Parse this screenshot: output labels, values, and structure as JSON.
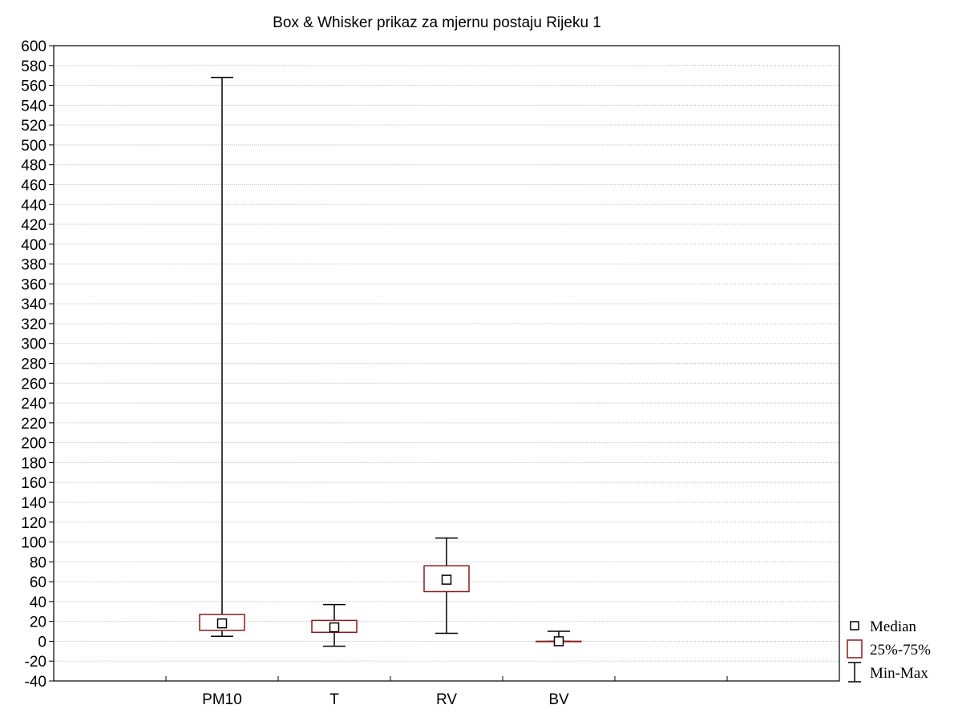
{
  "chart_data": {
    "type": "box",
    "title": "Box & Whisker prikaz za mjernu postaju Rijeku 1",
    "xlabel": "",
    "ylabel": "",
    "ylim": [
      -40,
      600
    ],
    "ytick_step": 20,
    "grid": true,
    "legend_position": "bottom-right",
    "slot_count": 7,
    "categories": [
      "PM10",
      "T",
      "RV",
      "BV"
    ],
    "category_slots": [
      2,
      3,
      4,
      5
    ],
    "series": [
      {
        "category": "PM10",
        "min": 5,
        "q1": 11,
        "median": 18,
        "q3": 27,
        "max": 568
      },
      {
        "category": "T",
        "min": -5,
        "q1": 9,
        "median": 14,
        "q3": 21,
        "max": 37
      },
      {
        "category": "RV",
        "min": 8,
        "q1": 50,
        "median": 62,
        "q3": 76,
        "max": 104
      },
      {
        "category": "BV",
        "min": 0,
        "q1": 0,
        "median": 0,
        "q3": 0,
        "max": 10
      }
    ],
    "legend": [
      {
        "label": "Median",
        "symbol": "median"
      },
      {
        "label": "25%-75%",
        "symbol": "box"
      },
      {
        "label": "Min-Max",
        "symbol": "whisker"
      }
    ],
    "colors": {
      "box_stroke": "#8b1a1a",
      "median_stroke": "#000000",
      "whisker": "#000000",
      "grid": "#b8b8b8",
      "axis": "#000000"
    }
  }
}
